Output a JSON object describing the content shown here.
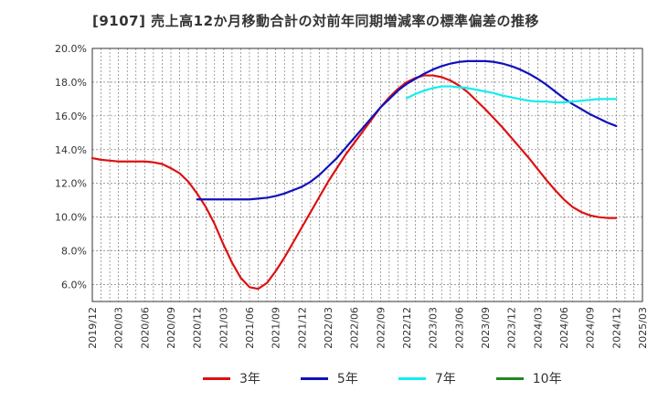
{
  "title": "[9107]  売上高12か月移動合計の対前年同期増減率の標準偏差の推移",
  "chart_data": {
    "type": "line",
    "title": "[9107]  売上高12か月移動合計の対前年同期増減率の標準偏差の推移",
    "ylim": [
      5.0,
      20.0
    ],
    "yticks": [
      "6.0%",
      "8.0%",
      "10.0%",
      "12.0%",
      "14.0%",
      "16.0%",
      "18.0%",
      "20.0%"
    ],
    "ytick_values": [
      6,
      8,
      10,
      12,
      14,
      16,
      18,
      20
    ],
    "xticks": [
      "2019/12",
      "2020/03",
      "2020/06",
      "2020/09",
      "2020/12",
      "2021/03",
      "2021/06",
      "2021/09",
      "2021/12",
      "2022/03",
      "2022/06",
      "2022/09",
      "2022/12",
      "2023/03",
      "2023/06",
      "2023/09",
      "2023/12",
      "2024/03",
      "2024/06",
      "2024/09",
      "2024/12",
      "2025/03"
    ],
    "xlim": [
      "2019/12",
      "2025/03"
    ],
    "grid": true,
    "legend_position": "bottom",
    "series": [
      {
        "name": "3年",
        "color": "#dd1111",
        "points": [
          [
            "2019/12",
            13.5
          ],
          [
            "2020/01",
            13.4
          ],
          [
            "2020/02",
            13.35
          ],
          [
            "2020/03",
            13.3
          ],
          [
            "2020/04",
            13.3
          ],
          [
            "2020/05",
            13.3
          ],
          [
            "2020/06",
            13.3
          ],
          [
            "2020/07",
            13.25
          ],
          [
            "2020/08",
            13.15
          ],
          [
            "2020/09",
            12.9
          ],
          [
            "2020/10",
            12.6
          ],
          [
            "2020/11",
            12.1
          ],
          [
            "2020/12",
            11.4
          ],
          [
            "2021/01",
            10.6
          ],
          [
            "2021/02",
            9.6
          ],
          [
            "2021/03",
            8.4
          ],
          [
            "2021/04",
            7.3
          ],
          [
            "2021/05",
            6.4
          ],
          [
            "2021/06",
            5.85
          ],
          [
            "2021/07",
            5.75
          ],
          [
            "2021/08",
            6.1
          ],
          [
            "2021/09",
            6.8
          ],
          [
            "2021/10",
            7.6
          ],
          [
            "2021/11",
            8.5
          ],
          [
            "2021/12",
            9.4
          ],
          [
            "2022/01",
            10.3
          ],
          [
            "2022/02",
            11.2
          ],
          [
            "2022/03",
            12.1
          ],
          [
            "2022/04",
            12.9
          ],
          [
            "2022/05",
            13.7
          ],
          [
            "2022/06",
            14.4
          ],
          [
            "2022/07",
            15.1
          ],
          [
            "2022/08",
            15.8
          ],
          [
            "2022/09",
            16.5
          ],
          [
            "2022/10",
            17.1
          ],
          [
            "2022/11",
            17.6
          ],
          [
            "2022/12",
            18.0
          ],
          [
            "2023/01",
            18.25
          ],
          [
            "2023/02",
            18.4
          ],
          [
            "2023/03",
            18.4
          ],
          [
            "2023/04",
            18.3
          ],
          [
            "2023/05",
            18.1
          ],
          [
            "2023/06",
            17.8
          ],
          [
            "2023/07",
            17.4
          ],
          [
            "2023/08",
            16.9
          ],
          [
            "2023/09",
            16.4
          ],
          [
            "2023/10",
            15.85
          ],
          [
            "2023/11",
            15.3
          ],
          [
            "2023/12",
            14.7
          ],
          [
            "2024/01",
            14.1
          ],
          [
            "2024/02",
            13.5
          ],
          [
            "2024/03",
            12.85
          ],
          [
            "2024/04",
            12.2
          ],
          [
            "2024/05",
            11.6
          ],
          [
            "2024/06",
            11.05
          ],
          [
            "2024/07",
            10.6
          ],
          [
            "2024/08",
            10.3
          ],
          [
            "2024/09",
            10.1
          ],
          [
            "2024/10",
            10.0
          ],
          [
            "2024/11",
            9.95
          ],
          [
            "2024/12",
            9.95
          ]
        ]
      },
      {
        "name": "5年",
        "color": "#1111bb",
        "points": [
          [
            "2020/12",
            11.05
          ],
          [
            "2021/01",
            11.05
          ],
          [
            "2021/02",
            11.05
          ],
          [
            "2021/03",
            11.05
          ],
          [
            "2021/04",
            11.05
          ],
          [
            "2021/05",
            11.05
          ],
          [
            "2021/06",
            11.05
          ],
          [
            "2021/07",
            11.1
          ],
          [
            "2021/08",
            11.15
          ],
          [
            "2021/09",
            11.25
          ],
          [
            "2021/10",
            11.4
          ],
          [
            "2021/11",
            11.6
          ],
          [
            "2021/12",
            11.8
          ],
          [
            "2022/01",
            12.1
          ],
          [
            "2022/02",
            12.5
          ],
          [
            "2022/03",
            13.0
          ],
          [
            "2022/04",
            13.5
          ],
          [
            "2022/05",
            14.1
          ],
          [
            "2022/06",
            14.7
          ],
          [
            "2022/07",
            15.3
          ],
          [
            "2022/08",
            15.9
          ],
          [
            "2022/09",
            16.5
          ],
          [
            "2022/10",
            17.0
          ],
          [
            "2022/11",
            17.5
          ],
          [
            "2022/12",
            17.9
          ],
          [
            "2023/01",
            18.2
          ],
          [
            "2023/02",
            18.5
          ],
          [
            "2023/03",
            18.75
          ],
          [
            "2023/04",
            18.95
          ],
          [
            "2023/05",
            19.1
          ],
          [
            "2023/06",
            19.2
          ],
          [
            "2023/07",
            19.25
          ],
          [
            "2023/08",
            19.25
          ],
          [
            "2023/09",
            19.25
          ],
          [
            "2023/10",
            19.2
          ],
          [
            "2023/11",
            19.1
          ],
          [
            "2023/12",
            18.95
          ],
          [
            "2024/01",
            18.75
          ],
          [
            "2024/02",
            18.5
          ],
          [
            "2024/03",
            18.2
          ],
          [
            "2024/04",
            17.85
          ],
          [
            "2024/05",
            17.45
          ],
          [
            "2024/06",
            17.05
          ],
          [
            "2024/07",
            16.7
          ],
          [
            "2024/08",
            16.4
          ],
          [
            "2024/09",
            16.1
          ],
          [
            "2024/10",
            15.85
          ],
          [
            "2024/11",
            15.6
          ],
          [
            "2024/12",
            15.4
          ]
        ]
      },
      {
        "name": "7年",
        "color": "#11eeee",
        "points": [
          [
            "2022/12",
            17.05
          ],
          [
            "2023/01",
            17.3
          ],
          [
            "2023/02",
            17.5
          ],
          [
            "2023/03",
            17.65
          ],
          [
            "2023/04",
            17.75
          ],
          [
            "2023/05",
            17.75
          ],
          [
            "2023/06",
            17.7
          ],
          [
            "2023/07",
            17.65
          ],
          [
            "2023/08",
            17.55
          ],
          [
            "2023/09",
            17.45
          ],
          [
            "2023/10",
            17.35
          ],
          [
            "2023/11",
            17.2
          ],
          [
            "2023/12",
            17.1
          ],
          [
            "2024/01",
            17.0
          ],
          [
            "2024/02",
            16.9
          ],
          [
            "2024/03",
            16.85
          ],
          [
            "2024/04",
            16.85
          ],
          [
            "2024/05",
            16.8
          ],
          [
            "2024/06",
            16.8
          ],
          [
            "2024/07",
            16.85
          ],
          [
            "2024/08",
            16.9
          ],
          [
            "2024/09",
            16.95
          ],
          [
            "2024/10",
            17.0
          ],
          [
            "2024/11",
            17.0
          ],
          [
            "2024/12",
            17.0
          ]
        ]
      },
      {
        "name": "10年",
        "color": "#228822",
        "points": []
      }
    ]
  }
}
